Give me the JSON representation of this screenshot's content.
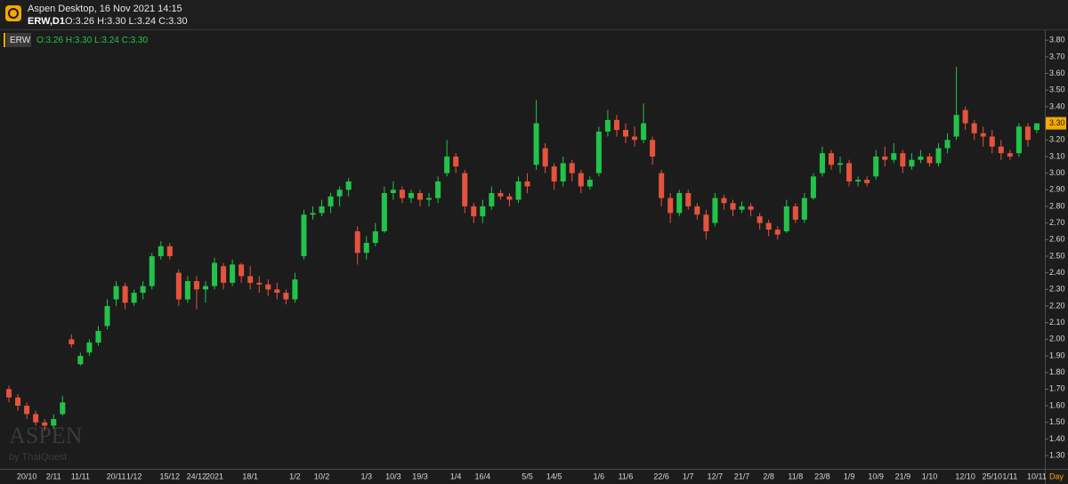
{
  "header": {
    "title": "Aspen Desktop, 16 Nov 2021 14:15",
    "symbol": "ERW,D1",
    "ohlc": "O:3.26 H:3.30 L:3.24 C:3.30"
  },
  "legend": {
    "symbol": "ERW",
    "ohlc": "O:3.26 H:3.30 L:3.24 C:3.30"
  },
  "watermark": {
    "brand": "ASPEN",
    "by": "by ThaiQuest"
  },
  "chart_data": {
    "type": "candlestick",
    "up_color": "#22c34a",
    "down_color": "#e5533d",
    "period": "Day",
    "last_price": {
      "value": 3.3,
      "label": "3.30"
    },
    "ylim": [
      1.22,
      3.86
    ],
    "yticks": [
      {
        "value": 1.3,
        "label": "1.30"
      },
      {
        "value": 1.4,
        "label": "1.40"
      },
      {
        "value": 1.5,
        "label": "1.50"
      },
      {
        "value": 1.6,
        "label": "1.60"
      },
      {
        "value": 1.7,
        "label": "1.70"
      },
      {
        "value": 1.8,
        "label": "1.80"
      },
      {
        "value": 1.9,
        "label": "1.90"
      },
      {
        "value": 2.0,
        "label": "2.00"
      },
      {
        "value": 2.1,
        "label": "2.10"
      },
      {
        "value": 2.2,
        "label": "2.20"
      },
      {
        "value": 2.3,
        "label": "2.30"
      },
      {
        "value": 2.4,
        "label": "2.40"
      },
      {
        "value": 2.5,
        "label": "2.50"
      },
      {
        "value": 2.6,
        "label": "2.60"
      },
      {
        "value": 2.7,
        "label": "2.70"
      },
      {
        "value": 2.8,
        "label": "2.80"
      },
      {
        "value": 2.9,
        "label": "2.90"
      },
      {
        "value": 3.0,
        "label": "3.00"
      },
      {
        "value": 3.1,
        "label": "3.10"
      },
      {
        "value": 3.2,
        "label": "3.20"
      },
      {
        "value": 3.3,
        "label": "3.30"
      },
      {
        "value": 3.4,
        "label": "3.40"
      },
      {
        "value": 3.5,
        "label": "3.50"
      },
      {
        "value": 3.6,
        "label": "3.60"
      },
      {
        "value": 3.7,
        "label": "3.70"
      },
      {
        "value": 3.8,
        "label": "3.80"
      }
    ],
    "categories": [
      null,
      null,
      "20/10",
      null,
      null,
      "2/11",
      null,
      null,
      "11/11",
      null,
      null,
      null,
      "20/11",
      null,
      "1/12",
      null,
      null,
      null,
      "15/12",
      null,
      null,
      "24/12",
      null,
      "2021",
      null,
      null,
      null,
      "18/1",
      null,
      null,
      null,
      null,
      "1/2",
      null,
      null,
      "10/2",
      null,
      null,
      null,
      null,
      "1/3",
      null,
      null,
      "10/3",
      null,
      null,
      "19/3",
      null,
      null,
      null,
      "1/4",
      null,
      null,
      "16/4",
      null,
      null,
      null,
      null,
      "5/5",
      null,
      null,
      "14/5",
      null,
      null,
      null,
      null,
      "1/6",
      null,
      null,
      "11/6",
      null,
      null,
      null,
      "22/6",
      null,
      null,
      "1/7",
      null,
      null,
      "12/7",
      null,
      null,
      "21/7",
      null,
      null,
      "2/8",
      null,
      null,
      "11/8",
      null,
      null,
      "23/8",
      null,
      null,
      "1/9",
      null,
      null,
      "10/9",
      null,
      null,
      "21/9",
      null,
      null,
      "1/10",
      null,
      null,
      null,
      "12/10",
      null,
      null,
      "25/10",
      null,
      "1/11",
      null,
      null,
      "10/11"
    ],
    "open": [
      1.7,
      1.65,
      1.6,
      1.55,
      1.5,
      1.48,
      1.55,
      2.0,
      1.85,
      1.92,
      1.98,
      2.08,
      2.24,
      2.32,
      2.22,
      2.28,
      2.32,
      2.5,
      2.56,
      2.4,
      2.24,
      2.35,
      2.3,
      2.32,
      2.44,
      2.34,
      2.45,
      2.38,
      2.34,
      2.33,
      2.3,
      2.28,
      2.24,
      2.5,
      2.75,
      2.76,
      2.8,
      2.86,
      2.9,
      2.65,
      2.52,
      2.58,
      2.65,
      2.88,
      2.9,
      2.85,
      2.88,
      2.84,
      2.85,
      3.0,
      3.1,
      3.0,
      2.8,
      2.74,
      2.8,
      2.88,
      2.86,
      2.84,
      2.95,
      3.05,
      3.15,
      3.04,
      2.95,
      3.06,
      3.0,
      2.92,
      3.0,
      3.25,
      3.32,
      3.26,
      3.22,
      3.2,
      3.2,
      3.0,
      2.85,
      2.76,
      2.88,
      2.8,
      2.75,
      2.7,
      2.85,
      2.82,
      2.78,
      2.8,
      2.74,
      2.7,
      2.66,
      2.65,
      2.8,
      2.72,
      2.85,
      3.0,
      3.12,
      3.05,
      3.06,
      2.95,
      2.96,
      2.98,
      3.1,
      3.08,
      3.12,
      3.04,
      3.08,
      3.1,
      3.06,
      3.15,
      3.22,
      3.38,
      3.3,
      3.24,
      3.22,
      3.16,
      3.12,
      3.12,
      3.28,
      3.26
    ],
    "high": [
      1.72,
      1.67,
      1.62,
      1.57,
      1.52,
      1.55,
      1.66,
      2.03,
      1.92,
      2.0,
      2.08,
      2.24,
      2.35,
      2.34,
      2.3,
      2.35,
      2.52,
      2.59,
      2.58,
      2.42,
      2.38,
      2.38,
      2.35,
      2.49,
      2.46,
      2.48,
      2.46,
      2.44,
      2.38,
      2.36,
      2.34,
      2.3,
      2.4,
      2.78,
      2.8,
      2.84,
      2.88,
      2.92,
      2.97,
      2.68,
      2.62,
      2.7,
      2.92,
      2.95,
      2.92,
      2.9,
      2.9,
      2.88,
      2.98,
      3.2,
      3.12,
      3.02,
      2.82,
      2.84,
      2.92,
      2.9,
      2.88,
      2.98,
      3.0,
      3.44,
      3.18,
      3.06,
      3.1,
      3.08,
      3.02,
      2.98,
      3.28,
      3.38,
      3.35,
      3.3,
      3.28,
      3.42,
      3.22,
      3.02,
      2.88,
      2.9,
      2.9,
      2.82,
      2.78,
      2.88,
      2.87,
      2.84,
      2.83,
      2.82,
      2.76,
      2.72,
      2.68,
      2.84,
      2.82,
      2.88,
      3.0,
      3.16,
      3.14,
      3.1,
      3.08,
      2.98,
      2.98,
      3.14,
      3.16,
      3.18,
      3.14,
      3.12,
      3.14,
      3.12,
      3.18,
      3.24,
      3.64,
      3.4,
      3.32,
      3.28,
      3.26,
      3.2,
      3.14,
      3.3,
      3.3,
      3.3
    ],
    "low": [
      1.62,
      1.57,
      1.52,
      1.48,
      1.45,
      1.46,
      1.54,
      1.95,
      1.84,
      1.9,
      1.96,
      2.06,
      2.2,
      2.18,
      2.2,
      2.24,
      2.3,
      2.48,
      2.48,
      2.2,
      2.22,
      2.18,
      2.22,
      2.3,
      2.3,
      2.32,
      2.34,
      2.3,
      2.28,
      2.26,
      2.24,
      2.21,
      2.22,
      2.48,
      2.72,
      2.74,
      2.76,
      2.8,
      2.86,
      2.45,
      2.48,
      2.56,
      2.64,
      2.84,
      2.82,
      2.82,
      2.8,
      2.8,
      2.82,
      2.98,
      3.0,
      2.76,
      2.7,
      2.7,
      2.78,
      2.84,
      2.8,
      2.82,
      2.88,
      3.02,
      3.0,
      2.9,
      2.92,
      2.95,
      2.88,
      2.9,
      2.98,
      3.22,
      3.22,
      3.18,
      3.16,
      3.18,
      3.05,
      2.8,
      2.7,
      2.74,
      2.78,
      2.72,
      2.6,
      2.68,
      2.78,
      2.74,
      2.76,
      2.74,
      2.66,
      2.62,
      2.6,
      2.64,
      2.7,
      2.7,
      2.84,
      2.98,
      3.02,
      3.0,
      2.92,
      2.92,
      2.92,
      2.96,
      3.04,
      3.06,
      3.0,
      3.02,
      3.06,
      3.04,
      3.04,
      3.12,
      3.2,
      3.26,
      3.2,
      3.16,
      3.12,
      3.08,
      3.08,
      3.1,
      3.16,
      3.24
    ],
    "close": [
      1.65,
      1.6,
      1.55,
      1.5,
      1.48,
      1.52,
      1.62,
      1.97,
      1.9,
      1.98,
      2.05,
      2.2,
      2.32,
      2.22,
      2.28,
      2.32,
      2.5,
      2.56,
      2.5,
      2.24,
      2.35,
      2.3,
      2.32,
      2.46,
      2.34,
      2.45,
      2.38,
      2.34,
      2.33,
      2.3,
      2.28,
      2.24,
      2.36,
      2.75,
      2.76,
      2.8,
      2.86,
      2.9,
      2.95,
      2.52,
      2.58,
      2.65,
      2.88,
      2.9,
      2.85,
      2.88,
      2.84,
      2.85,
      2.95,
      3.1,
      3.04,
      2.8,
      2.74,
      2.8,
      2.88,
      2.86,
      2.84,
      2.95,
      2.92,
      3.3,
      3.04,
      2.95,
      3.06,
      3.0,
      2.92,
      2.96,
      3.25,
      3.32,
      3.26,
      3.22,
      3.2,
      3.3,
      3.1,
      2.85,
      2.76,
      2.88,
      2.8,
      2.75,
      2.65,
      2.85,
      2.82,
      2.78,
      2.8,
      2.78,
      2.7,
      2.66,
      2.63,
      2.8,
      2.72,
      2.85,
      2.98,
      3.12,
      3.05,
      3.06,
      2.95,
      2.96,
      2.94,
      3.1,
      3.08,
      3.12,
      3.04,
      3.08,
      3.1,
      3.06,
      3.15,
      3.2,
      3.35,
      3.3,
      3.24,
      3.22,
      3.16,
      3.12,
      3.1,
      3.28,
      3.2,
      3.3
    ]
  }
}
